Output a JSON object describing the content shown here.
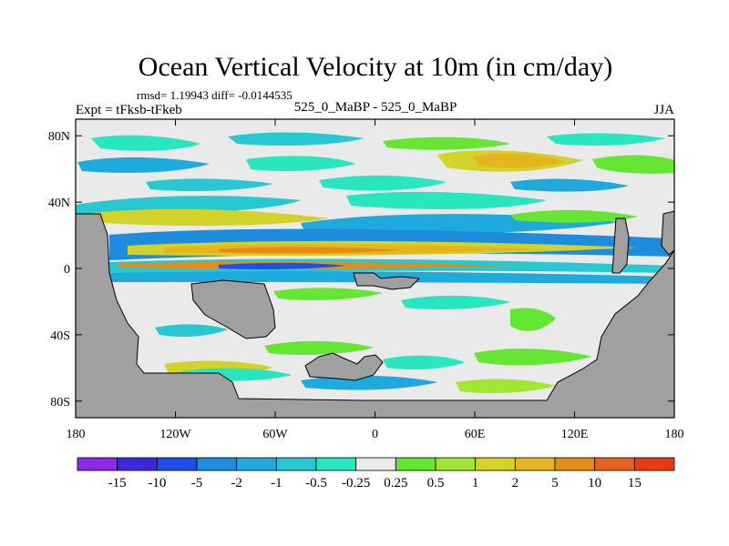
{
  "chart_data": {
    "type": "heatmap",
    "title": "Ocean Vertical Velocity at 10m (in cm/day)",
    "stats": "rmsd= 1.19943 diff= -0.0144535",
    "experiment": "Expt = tFksb-tFkeb",
    "comparison": "525_0_MaBP - 525_0_MaBP",
    "season": "JJA",
    "x_ticks": [
      "180",
      "120W",
      "60W",
      "0",
      "60E",
      "120E",
      "180"
    ],
    "x_values": [
      -180,
      -120,
      -60,
      0,
      60,
      120,
      180
    ],
    "y_ticks": [
      "80N",
      "40N",
      "0",
      "40S",
      "80S"
    ],
    "y_values": [
      80,
      40,
      0,
      -40,
      -80
    ],
    "xlim": [
      -180,
      180
    ],
    "ylim": [
      -90,
      90
    ],
    "levels": [
      "-15",
      "-10",
      "-5",
      "-2",
      "-1",
      "-0.5",
      "-0.25",
      "0.25",
      "0.5",
      "1",
      "2",
      "5",
      "10",
      "15"
    ],
    "colors": [
      "#8c28e6",
      "#3c28dc",
      "#1e50e6",
      "#1e8cdc",
      "#1eaadc",
      "#28c8d2",
      "#28e6be",
      "#eaeaea",
      "#64e632",
      "#a0e632",
      "#d2d228",
      "#e6b41e",
      "#e68c14",
      "#e6641e",
      "#e63c14"
    ],
    "land_color": "#a0a0a0"
  }
}
